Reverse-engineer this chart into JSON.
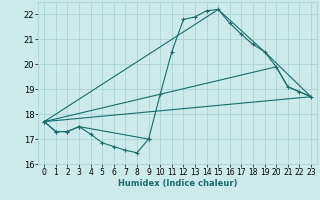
{
  "xlabel": "Humidex (Indice chaleur)",
  "bg_color": "#cceaea",
  "grid_color": "#aad4d4",
  "line_color": "#1a6b6b",
  "xlim": [
    -0.5,
    23.5
  ],
  "ylim": [
    16,
    22.5
  ],
  "yticks": [
    16,
    17,
    18,
    19,
    20,
    21,
    22
  ],
  "xticks": [
    0,
    1,
    2,
    3,
    4,
    5,
    6,
    7,
    8,
    9,
    10,
    11,
    12,
    13,
    14,
    15,
    16,
    17,
    18,
    19,
    20,
    21,
    22,
    23
  ],
  "lines": [
    {
      "x": [
        0,
        1,
        2,
        3,
        4,
        5,
        6,
        7,
        8,
        9
      ],
      "y": [
        17.7,
        17.3,
        17.3,
        17.5,
        17.2,
        16.85,
        16.7,
        16.55,
        16.45,
        17.0
      ],
      "marker": true
    },
    {
      "x": [
        0,
        1,
        2,
        3,
        9,
        10,
        11,
        12,
        13,
        14,
        15,
        16,
        17,
        18,
        19,
        20,
        21,
        22,
        23
      ],
      "y": [
        17.7,
        17.3,
        17.3,
        17.5,
        17.0,
        18.8,
        20.5,
        21.8,
        21.9,
        22.15,
        22.2,
        21.65,
        21.2,
        20.8,
        20.5,
        19.9,
        19.1,
        18.9,
        18.7
      ],
      "marker": true
    },
    {
      "x": [
        0,
        15,
        19,
        23
      ],
      "y": [
        17.7,
        22.2,
        20.5,
        18.7
      ],
      "marker": false
    },
    {
      "x": [
        0,
        23
      ],
      "y": [
        17.7,
        18.7
      ],
      "marker": false
    },
    {
      "x": [
        0,
        20,
        21,
        22,
        23
      ],
      "y": [
        17.7,
        19.9,
        19.1,
        18.9,
        18.7
      ],
      "marker": false
    }
  ]
}
